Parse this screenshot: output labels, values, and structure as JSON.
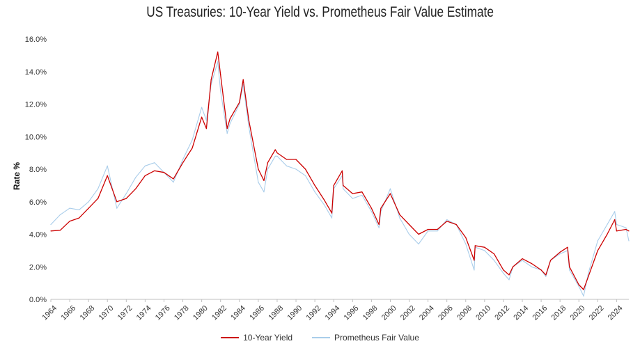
{
  "chart_data": {
    "type": "line",
    "title": "US Treasuries: 10-Year Yield vs. Prometheus Fair Value Estimate",
    "xlabel": "",
    "ylabel": "Rate %",
    "xlim": [
      1964,
      2025.3
    ],
    "ylim": [
      0,
      16
    ],
    "yticks": [
      "0.0%",
      "2.0%",
      "4.0%",
      "6.0%",
      "8.0%",
      "10.0%",
      "12.0%",
      "14.0%",
      "16.0%"
    ],
    "xticks": [
      "1964",
      "1966",
      "1968",
      "1970",
      "1972",
      "1974",
      "1976",
      "1978",
      "1980",
      "1982",
      "1984",
      "1986",
      "1988",
      "1990",
      "1992",
      "1994",
      "1996",
      "1998",
      "2000",
      "2002",
      "2004",
      "2006",
      "2008",
      "2010",
      "2012",
      "2014",
      "2016",
      "2018",
      "2020",
      "2022",
      "2024"
    ],
    "grid": false,
    "legend_position": "bottom",
    "series": [
      {
        "name": "10-Year Yield",
        "color": "#cc0000",
        "x": [
          1964,
          1965,
          1966,
          1967,
          1968,
          1969,
          1970,
          1971,
          1972,
          1973,
          1974,
          1975,
          1976,
          1977,
          1978,
          1979,
          1980,
          1980.5,
          1981,
          1981.7,
          1982,
          1982.7,
          1983,
          1984,
          1984.4,
          1985,
          1986,
          1986.6,
          1987,
          1987.8,
          1988,
          1989,
          1990,
          1991,
          1992,
          1993,
          1993.8,
          1994,
          1994.9,
          1995,
          1996,
          1997,
          1998,
          1998.8,
          1999,
          2000,
          2001,
          2002,
          2003,
          2004,
          2005,
          2006,
          2007,
          2008,
          2008.9,
          2009,
          2010,
          2011,
          2012,
          2012.6,
          2013,
          2014,
          2015,
          2016,
          2016.5,
          2017,
          2018,
          2018.8,
          2019,
          2020,
          2020.5,
          2021,
          2022,
          2023,
          2023.8,
          2024,
          2025,
          2025.3
        ],
        "values": [
          4.2,
          4.25,
          4.8,
          5.0,
          5.6,
          6.2,
          7.6,
          6.0,
          6.2,
          6.8,
          7.6,
          7.9,
          7.8,
          7.4,
          8.4,
          9.3,
          11.2,
          10.5,
          13.5,
          15.2,
          13.8,
          10.5,
          11.1,
          12.1,
          13.5,
          11.0,
          8.0,
          7.3,
          8.4,
          9.2,
          9.0,
          8.6,
          8.6,
          8.0,
          7.0,
          6.1,
          5.3,
          7.0,
          7.9,
          7.0,
          6.5,
          6.6,
          5.6,
          4.6,
          5.6,
          6.5,
          5.2,
          4.6,
          4.0,
          4.3,
          4.3,
          4.8,
          4.6,
          3.8,
          2.4,
          3.3,
          3.2,
          2.8,
          1.8,
          1.5,
          2.0,
          2.5,
          2.2,
          1.8,
          1.5,
          2.4,
          2.9,
          3.2,
          2.0,
          0.9,
          0.6,
          1.4,
          3.0,
          4.0,
          4.9,
          4.2,
          4.3,
          4.2
        ]
      },
      {
        "name": "Prometheus Fair Value",
        "color": "#a9cdea",
        "x": [
          1964,
          1965,
          1966,
          1967,
          1968,
          1969,
          1970,
          1971,
          1972,
          1973,
          1974,
          1975,
          1976,
          1977,
          1978,
          1979,
          1980,
          1980.5,
          1981,
          1981.7,
          1982,
          1982.7,
          1983,
          1984,
          1984.4,
          1985,
          1986,
          1986.6,
          1987,
          1987.8,
          1988,
          1989,
          1990,
          1991,
          1992,
          1993,
          1993.8,
          1994,
          1994.9,
          1995,
          1996,
          1997,
          1998,
          1998.8,
          1999,
          2000,
          2001,
          2002,
          2003,
          2004,
          2005,
          2006,
          2007,
          2008,
          2008.9,
          2009,
          2010,
          2011,
          2012,
          2012.6,
          2013,
          2014,
          2015,
          2016,
          2016.5,
          2017,
          2018,
          2018.8,
          2019,
          2020,
          2020.5,
          2021,
          2022,
          2023,
          2023.8,
          2024,
          2025,
          2025.3
        ],
        "values": [
          4.6,
          5.2,
          5.6,
          5.5,
          6.0,
          6.8,
          8.2,
          5.6,
          6.5,
          7.5,
          8.2,
          8.4,
          7.8,
          7.2,
          8.6,
          9.8,
          11.8,
          11.0,
          13.2,
          14.6,
          12.8,
          10.2,
          10.8,
          12.0,
          13.2,
          10.6,
          7.2,
          6.6,
          8.0,
          8.8,
          8.8,
          8.2,
          8.0,
          7.6,
          6.6,
          5.8,
          5.0,
          6.8,
          7.6,
          6.8,
          6.2,
          6.4,
          5.4,
          4.4,
          5.4,
          6.8,
          5.0,
          4.0,
          3.4,
          4.2,
          4.2,
          4.9,
          4.6,
          3.4,
          1.8,
          3.2,
          3.0,
          2.4,
          1.6,
          1.2,
          2.0,
          2.4,
          2.0,
          1.8,
          1.4,
          2.4,
          2.8,
          3.0,
          1.8,
          0.8,
          0.2,
          1.6,
          3.6,
          4.6,
          5.4,
          4.6,
          4.4,
          3.6
        ]
      }
    ]
  }
}
